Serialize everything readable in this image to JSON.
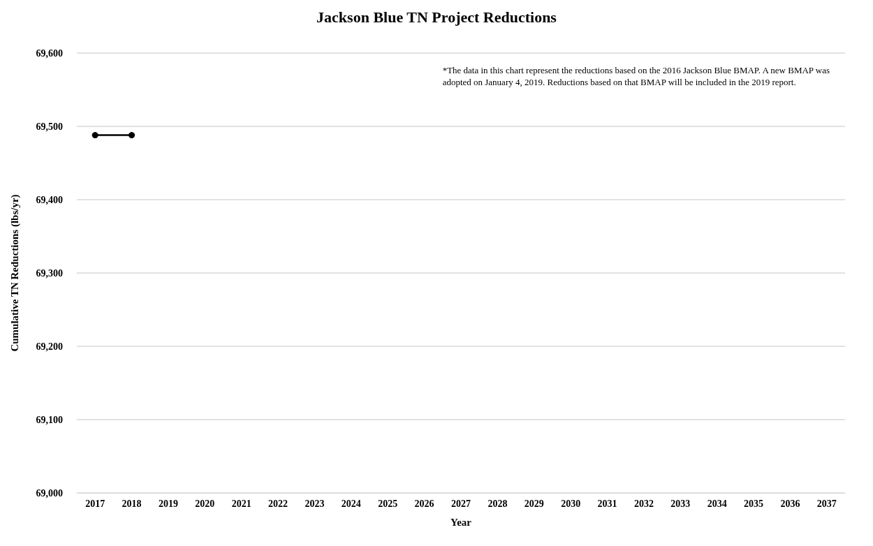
{
  "chart_data": {
    "type": "line",
    "title": "Jackson Blue TN Project Reductions",
    "xlabel": "Year",
    "ylabel": "Cumulative TN Reductions (lbs/yr)",
    "categories": [
      "2017",
      "2018",
      "2019",
      "2020",
      "2021",
      "2022",
      "2023",
      "2024",
      "2025",
      "2026",
      "2027",
      "2028",
      "2029",
      "2030",
      "2031",
      "2032",
      "2033",
      "2034",
      "2035",
      "2036",
      "2037"
    ],
    "series": [
      {
        "color": "#000000",
        "values": [
          69488,
          69488,
          null,
          null,
          null,
          null,
          null,
          null,
          null,
          null,
          null,
          null,
          null,
          null,
          null,
          null,
          null,
          null,
          null,
          null,
          null
        ]
      }
    ],
    "ylim": [
      69000,
      69600
    ],
    "yticks": [
      {
        "value": 69000,
        "label": "69,000"
      },
      {
        "value": 69100,
        "label": "69,100"
      },
      {
        "value": 69200,
        "label": "69,200"
      },
      {
        "value": 69300,
        "label": "69,300"
      },
      {
        "value": 69400,
        "label": "69,400"
      },
      {
        "value": 69500,
        "label": "69,500"
      },
      {
        "value": 69600,
        "label": "69,600"
      }
    ],
    "grid": "y",
    "marker": "circle",
    "line_style": "solid",
    "annotations": [
      "*The data in this chart represent the reductions based on the 2016 Jackson Blue BMAP. A new BMAP was\nadopted on January 4, 2019. Reductions based on that BMAP will be included in the 2019 report."
    ]
  }
}
